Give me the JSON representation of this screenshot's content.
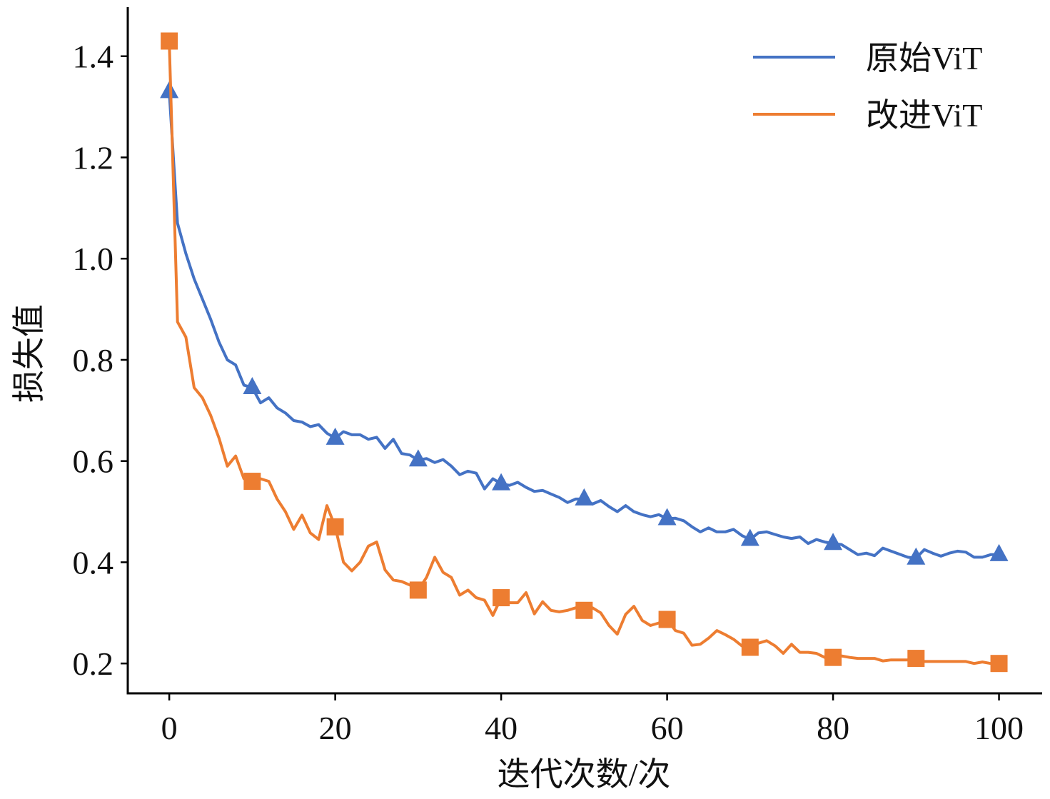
{
  "chart_data": {
    "type": "line",
    "title": "",
    "xlabel": "迭代次数/次",
    "ylabel": "损失值",
    "xlim": [
      -5,
      105.2
    ],
    "ylim": [
      0.141,
      1.497
    ],
    "xticks": [
      0,
      20,
      40,
      60,
      80,
      100
    ],
    "xtick_labels": [
      "0",
      "20",
      "40",
      "60",
      "80",
      "100"
    ],
    "yticks": [
      0.2,
      0.4,
      0.6,
      0.8,
      1.0,
      1.2,
      1.4
    ],
    "ytick_labels": [
      "0.2",
      "0.4",
      "0.6",
      "0.8",
      "1.0",
      "1.2",
      "1.4"
    ],
    "grid": false,
    "legend_position": "top-right",
    "marker_every": 10,
    "series": [
      {
        "name": "原始ViT",
        "color": "#4472C4",
        "marker": "triangle",
        "values": [
          1.33,
          1.07,
          1.01,
          0.96,
          0.92,
          0.88,
          0.835,
          0.8,
          0.79,
          0.75,
          0.745,
          0.715,
          0.725,
          0.705,
          0.695,
          0.68,
          0.677,
          0.668,
          0.672,
          0.655,
          0.645,
          0.658,
          0.652,
          0.652,
          0.643,
          0.647,
          0.625,
          0.643,
          0.615,
          0.612,
          0.602,
          0.605,
          0.597,
          0.603,
          0.59,
          0.573,
          0.58,
          0.576,
          0.545,
          0.565,
          0.555,
          0.552,
          0.558,
          0.548,
          0.54,
          0.542,
          0.535,
          0.528,
          0.518,
          0.525,
          0.525,
          0.515,
          0.522,
          0.51,
          0.5,
          0.512,
          0.5,
          0.494,
          0.49,
          0.494,
          0.486,
          0.487,
          0.482,
          0.47,
          0.46,
          0.468,
          0.46,
          0.46,
          0.465,
          0.453,
          0.445,
          0.458,
          0.46,
          0.455,
          0.45,
          0.447,
          0.45,
          0.437,
          0.445,
          0.44,
          0.437,
          0.435,
          0.425,
          0.415,
          0.418,
          0.413,
          0.428,
          0.422,
          0.416,
          0.41,
          0.408,
          0.425,
          0.418,
          0.412,
          0.418,
          0.422,
          0.42,
          0.41,
          0.41,
          0.415,
          0.415
        ]
      },
      {
        "name": "改进ViT",
        "color": "#ED7D31",
        "marker": "square",
        "values": [
          1.43,
          0.875,
          0.845,
          0.745,
          0.725,
          0.69,
          0.645,
          0.59,
          0.61,
          0.565,
          0.56,
          0.565,
          0.56,
          0.525,
          0.5,
          0.465,
          0.493,
          0.458,
          0.445,
          0.512,
          0.47,
          0.4,
          0.383,
          0.4,
          0.432,
          0.44,
          0.385,
          0.365,
          0.362,
          0.355,
          0.345,
          0.37,
          0.41,
          0.38,
          0.37,
          0.335,
          0.345,
          0.33,
          0.325,
          0.295,
          0.33,
          0.32,
          0.32,
          0.34,
          0.298,
          0.322,
          0.305,
          0.302,
          0.305,
          0.31,
          0.305,
          0.31,
          0.3,
          0.275,
          0.258,
          0.297,
          0.313,
          0.285,
          0.275,
          0.28,
          0.287,
          0.265,
          0.26,
          0.236,
          0.238,
          0.25,
          0.265,
          0.257,
          0.248,
          0.235,
          0.232,
          0.24,
          0.245,
          0.235,
          0.22,
          0.238,
          0.222,
          0.222,
          0.22,
          0.212,
          0.212,
          0.215,
          0.212,
          0.21,
          0.21,
          0.21,
          0.205,
          0.207,
          0.207,
          0.207,
          0.21,
          0.204,
          0.204,
          0.204,
          0.204,
          0.204,
          0.204,
          0.2,
          0.203,
          0.2,
          0.2
        ]
      }
    ]
  }
}
